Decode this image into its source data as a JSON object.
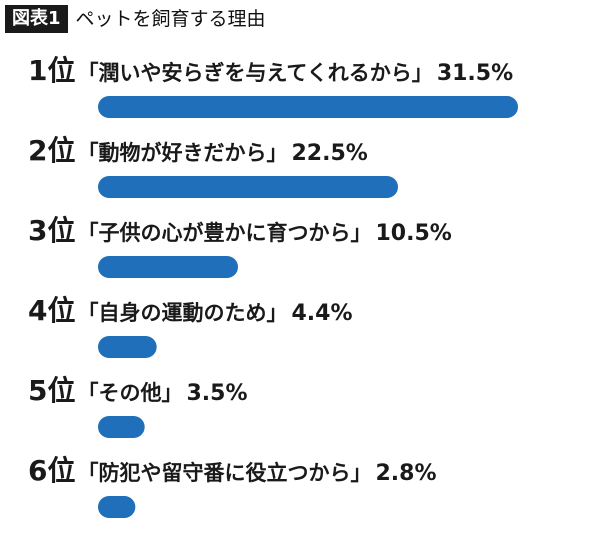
{
  "header": {
    "figure_tag": "図表1",
    "title": "ペットを飼育する理由"
  },
  "colors": {
    "bar": "#1f6fba",
    "text": "#1a1a1a",
    "tag_background": "#1a1a1a"
  },
  "chart_data": {
    "type": "bar",
    "orientation": "horizontal",
    "title": "ペットを飼育する理由",
    "categories": [
      "「潤いや安らぎを与えてくれるから」",
      "「動物が好きだから」",
      "「子供の心が豊かに育つから」",
      "「自身の運動のため」",
      "「その他」",
      "「防犯や留守番に役立つから」"
    ],
    "ranks": [
      "1位",
      "2位",
      "3位",
      "4位",
      "5位",
      "6位"
    ],
    "values": [
      31.5,
      22.5,
      10.5,
      4.4,
      3.5,
      2.8
    ],
    "value_labels": [
      "31.5%",
      "22.5%",
      "10.5%",
      "4.4%",
      "3.5%",
      "2.8%"
    ],
    "unit": "%",
    "grid": false,
    "legend": "none"
  }
}
